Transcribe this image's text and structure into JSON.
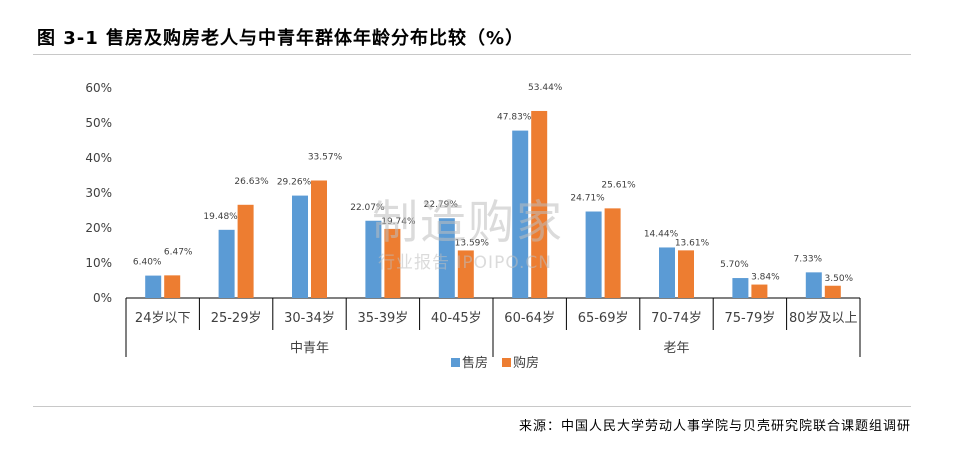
{
  "figure_title": "图 3-1  售房及购房老人与中青年群体年龄分布比较（%）",
  "source": "来源：中国人民大学劳动人事学院与贝壳研究院联合课题组调研",
  "watermark": {
    "main": "制造购家",
    "sub": "行业报告 IPOIPO.CN"
  },
  "colors": {
    "sell": "#5b9bd5",
    "buy": "#ed7d31",
    "axis": "#000000",
    "tick_text": "#404040"
  },
  "chart_data": {
    "type": "bar",
    "title": "",
    "xlabel": "",
    "ylabel": "",
    "ylim": [
      0,
      60
    ],
    "yticks": [
      "0%",
      "10%",
      "20%",
      "30%",
      "40%",
      "50%",
      "60%"
    ],
    "grid": false,
    "legend_position": "bottom",
    "categories": [
      "24岁以下",
      "25-29岁",
      "30-34岁",
      "35-39岁",
      "40-45岁",
      "60-64岁",
      "65-69岁",
      "70-74岁",
      "75-79岁",
      "80岁及以上"
    ],
    "groups": [
      {
        "label": "中青年",
        "categories": 5
      },
      {
        "label": "老年",
        "categories": 5
      }
    ],
    "series": [
      {
        "name": "售房",
        "values": [
          6.4,
          19.48,
          29.26,
          22.07,
          22.79,
          47.83,
          24.71,
          14.44,
          5.7,
          7.33
        ],
        "labels": [
          "6.40%",
          "19.48%",
          "29.26%",
          "22.07%",
          "22.79%",
          "47.83%",
          "24.71%",
          "14.44%",
          "5.70%",
          "7.33%"
        ]
      },
      {
        "name": "购房",
        "values": [
          6.47,
          26.63,
          33.57,
          19.74,
          13.59,
          53.44,
          25.61,
          13.61,
          3.84,
          3.5
        ],
        "labels": [
          "6.47%",
          "26.63%",
          "33.57%",
          "19.74%",
          "13.59%",
          "53.44%",
          "25.61%",
          "13.61%",
          "3.84%",
          "3.50%"
        ]
      }
    ]
  }
}
